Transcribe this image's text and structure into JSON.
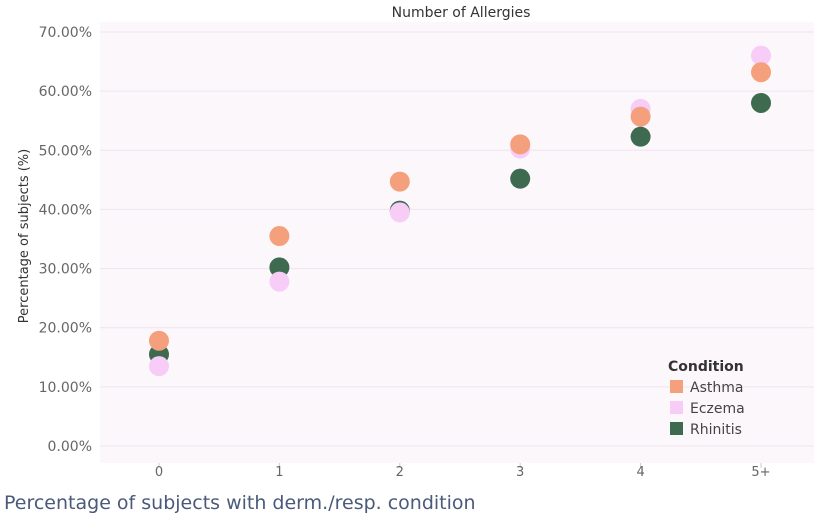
{
  "caption": "Percentage of subjects with derm./resp. condition",
  "chart_data": {
    "type": "scatter",
    "title": "Number of Allergies",
    "xlabel": "",
    "ylabel": "Percentage of subjects (%)",
    "categories": [
      "0",
      "1",
      "2",
      "3",
      "4",
      "5+"
    ],
    "ylim": [
      0,
      70
    ],
    "yticks": [
      "0.00%",
      "10.00%",
      "20.00%",
      "30.00%",
      "40.00%",
      "50.00%",
      "60.00%",
      "70.00%"
    ],
    "grid": true,
    "legend": {
      "title": "Condition",
      "placement": "bottom-right"
    },
    "series": [
      {
        "name": "Rhinitis",
        "color": "#3e6b4f",
        "values": [
          15.5,
          30.2,
          39.8,
          45.2,
          52.3,
          58.0
        ]
      },
      {
        "name": "Eczema",
        "color": "#f7ccf7",
        "values": [
          13.5,
          27.8,
          39.5,
          50.3,
          57.0,
          66.0
        ]
      },
      {
        "name": "Asthma",
        "color": "#f5a07c",
        "values": [
          17.8,
          35.5,
          44.7,
          51.0,
          55.7,
          63.2
        ]
      }
    ],
    "legend_order": [
      "Asthma",
      "Eczema",
      "Rhinitis"
    ]
  }
}
